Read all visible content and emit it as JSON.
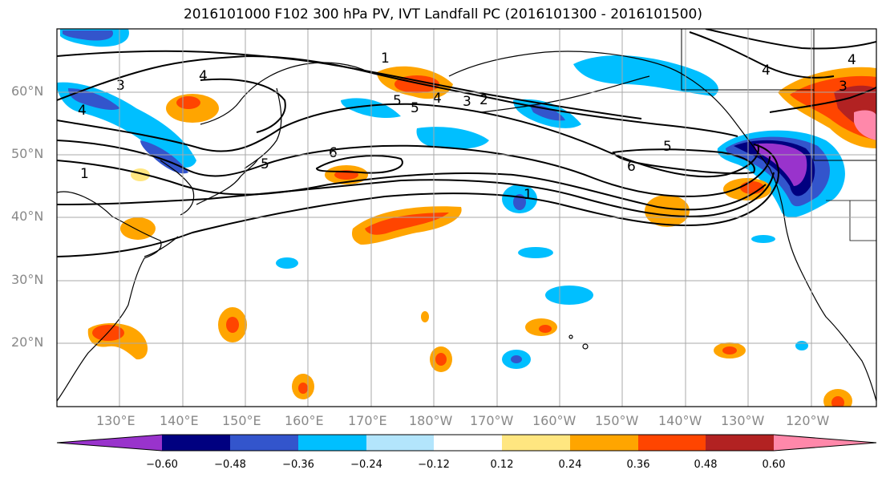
{
  "title": "2016101000 F102 300 hPa PV, IVT Landfall PC (2016101300 - 2016101500)",
  "lat_labels": [
    "60°N",
    "50°N",
    "40°N",
    "30°N",
    "20°N"
  ],
  "lon_labels": [
    "130°E",
    "140°E",
    "150°E",
    "160°E",
    "170°E",
    "180°W",
    "170°W",
    "160°W",
    "150°W",
    "140°W",
    "130°W",
    "120°W"
  ],
  "colorbar": {
    "labels": [
      "−0.60",
      "−0.48",
      "−0.36",
      "−0.24",
      "−0.12",
      "0.12",
      "0.24",
      "0.36",
      "0.48",
      "0.60"
    ],
    "colors": [
      "#9933cc",
      "#000080",
      "#3355cc",
      "#00bfff",
      "#b3e5fc",
      "#ffffff",
      "#ffe680",
      "#ffa500",
      "#ff4500",
      "#b22222",
      "#ff88aa"
    ]
  },
  "contour_labels": [
    "1",
    "2",
    "3",
    "4",
    "5",
    "6"
  ]
}
